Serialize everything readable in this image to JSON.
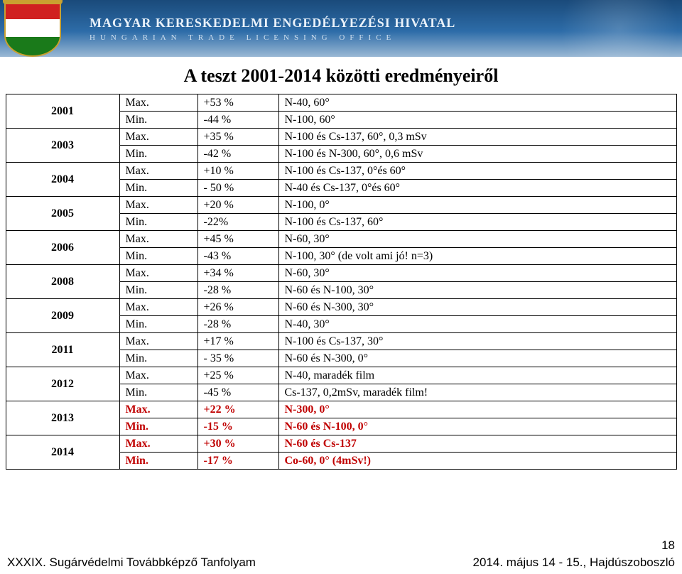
{
  "header": {
    "hu": "MAGYAR KERESKEDELMI ENGEDÉLYEZÉSI HIVATAL",
    "en": "HUNGARIAN TRADE LICENSING OFFICE"
  },
  "title": "A teszt 2001-2014 közötti eredményeiről",
  "years": [
    {
      "year": "2001",
      "max_pct": "+53 %",
      "max_note": "N-40, 60°",
      "min_pct": "-44 %",
      "min_note": "N-100, 60°",
      "red": false
    },
    {
      "year": "2003",
      "max_pct": "+35 %",
      "max_note": "N-100 és Cs-137, 60°, 0,3 mSv",
      "min_pct": "-42 %",
      "min_note": "N-100 és N-300, 60°, 0,6 mSv",
      "red": false
    },
    {
      "year": "2004",
      "max_pct": "+10 %",
      "max_note": "N-100 és Cs-137, 0°és 60°",
      "min_pct": "- 50 %",
      "min_note": "N-40 és Cs-137, 0°és 60°",
      "red": false
    },
    {
      "year": "2005",
      "max_pct": "+20 %",
      "max_note": "N-100, 0°",
      "min_pct": "-22%",
      "min_note": "N-100 és Cs-137, 60°",
      "red": false
    },
    {
      "year": "2006",
      "max_pct": "+45 %",
      "max_note": "N-60, 30°",
      "min_pct": "-43 %",
      "min_note": "N-100, 30° (de volt ami jó! n=3)",
      "red": false
    },
    {
      "year": "2008",
      "max_pct": "+34 %",
      "max_note": "N-60, 30°",
      "min_pct": "-28 %",
      "min_note": "N-60 és N-100, 30°",
      "red": false
    },
    {
      "year": "2009",
      "max_pct": "+26 %",
      "max_note": "N-60  és N-300, 30°",
      "min_pct": "-28 %",
      "min_note": "N-40, 30°",
      "red": false
    },
    {
      "year": "2011",
      "max_pct": "+17 %",
      "max_note": "N-100 és Cs-137, 30°",
      "min_pct": "- 35 %",
      "min_note": "N-60 és N-300, 0°",
      "red": false
    },
    {
      "year": "2012",
      "max_pct": "+25 %",
      "max_note": "N-40, maradék film",
      "min_pct": "-45 %",
      "min_note": "Cs-137, 0,2mSv, maradék film!",
      "red": false
    },
    {
      "year": "2013",
      "max_pct": "+22 %",
      "max_note": "N-300, 0°",
      "min_pct": "-15 %",
      "min_note": "N-60 és N-100, 0°",
      "red": true
    },
    {
      "year": "2014",
      "max_pct": "+30 %",
      "max_note": "N-60 és Cs-137",
      "min_pct": "-17 %",
      "min_note": "Co-60, 0° (4mSv!)",
      "red": true
    }
  ],
  "labels": {
    "max": "Max.",
    "min": "Min."
  },
  "footer": {
    "left": "XXXIX. Sugárvédelmi Továbbképző Tanfolyam",
    "right": "2014. május 14 - 15., Hajdúszoboszló",
    "page": "18"
  },
  "style": {
    "title_fontsize": 26,
    "year_fontsize": 22,
    "cell_fontsize": 16,
    "red_color": "#c00000",
    "border_color": "#000000",
    "header_gradient": [
      "#1a4a7a",
      "#2d6ca8",
      "#9ab8d4"
    ]
  }
}
